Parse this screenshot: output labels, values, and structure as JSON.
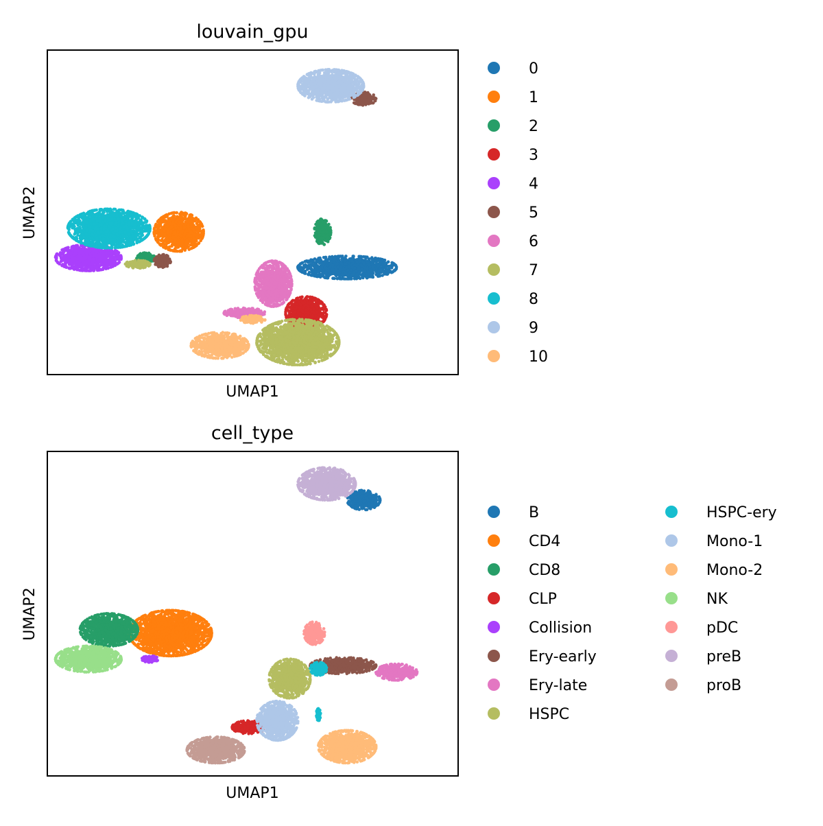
{
  "chart_data": [
    {
      "type": "scatter",
      "title": "louvain_gpu",
      "xlabel": "UMAP1",
      "ylabel": "UMAP2",
      "ticks": "none",
      "legend_position": "right",
      "legend_columns": 1,
      "series": [
        {
          "name": "0",
          "color": "#1f77b4",
          "clusters": [
            {
              "cx": 0.73,
              "cy": 0.33,
              "rx": 0.12,
              "ry": 0.035
            }
          ]
        },
        {
          "name": "1",
          "color": "#ff7f0e",
          "clusters": [
            {
              "cx": 0.32,
              "cy": 0.44,
              "rx": 0.06,
              "ry": 0.06
            }
          ]
        },
        {
          "name": "2",
          "color": "#279e68",
          "clusters": [
            {
              "cx": 0.67,
              "cy": 0.44,
              "rx": 0.02,
              "ry": 0.04
            },
            {
              "cx": 0.24,
              "cy": 0.36,
              "rx": 0.025,
              "ry": 0.015
            }
          ]
        },
        {
          "name": "3",
          "color": "#d62728",
          "clusters": [
            {
              "cx": 0.63,
              "cy": 0.19,
              "rx": 0.05,
              "ry": 0.05
            }
          ]
        },
        {
          "name": "4",
          "color": "#aa40fc",
          "clusters": [
            {
              "cx": 0.1,
              "cy": 0.36,
              "rx": 0.08,
              "ry": 0.04
            }
          ]
        },
        {
          "name": "5",
          "color": "#8c564b",
          "clusters": [
            {
              "cx": 0.77,
              "cy": 0.85,
              "rx": 0.03,
              "ry": 0.02
            },
            {
              "cx": 0.28,
              "cy": 0.35,
              "rx": 0.02,
              "ry": 0.02
            }
          ]
        },
        {
          "name": "6",
          "color": "#e377c2",
          "clusters": [
            {
              "cx": 0.55,
              "cy": 0.28,
              "rx": 0.045,
              "ry": 0.07
            },
            {
              "cx": 0.48,
              "cy": 0.19,
              "rx": 0.05,
              "ry": 0.015
            }
          ]
        },
        {
          "name": "7",
          "color": "#b5bd61",
          "clusters": [
            {
              "cx": 0.61,
              "cy": 0.1,
              "rx": 0.1,
              "ry": 0.07
            },
            {
              "cx": 0.22,
              "cy": 0.34,
              "rx": 0.03,
              "ry": 0.012
            }
          ]
        },
        {
          "name": "8",
          "color": "#17becf",
          "clusters": [
            {
              "cx": 0.15,
              "cy": 0.45,
              "rx": 0.1,
              "ry": 0.06
            }
          ]
        },
        {
          "name": "9",
          "color": "#aec7e8",
          "clusters": [
            {
              "cx": 0.69,
              "cy": 0.89,
              "rx": 0.08,
              "ry": 0.05
            }
          ]
        },
        {
          "name": "10",
          "color": "#ffbb78",
          "clusters": [
            {
              "cx": 0.42,
              "cy": 0.09,
              "rx": 0.07,
              "ry": 0.04
            },
            {
              "cx": 0.5,
              "cy": 0.17,
              "rx": 0.03,
              "ry": 0.012
            }
          ]
        }
      ]
    },
    {
      "type": "scatter",
      "title": "cell_type",
      "xlabel": "UMAP1",
      "ylabel": "UMAP2",
      "ticks": "none",
      "legend_position": "right",
      "legend_columns": 2,
      "series": [
        {
          "name": "B",
          "color": "#1f77b4",
          "clusters": [
            {
              "cx": 0.77,
              "cy": 0.85,
              "rx": 0.04,
              "ry": 0.03
            }
          ]
        },
        {
          "name": "CD4",
          "color": "#ff7f0e",
          "clusters": [
            {
              "cx": 0.3,
              "cy": 0.44,
              "rx": 0.1,
              "ry": 0.07
            }
          ]
        },
        {
          "name": "CD8",
          "color": "#279e68",
          "clusters": [
            {
              "cx": 0.15,
              "cy": 0.45,
              "rx": 0.07,
              "ry": 0.05
            }
          ]
        },
        {
          "name": "CLP",
          "color": "#d62728",
          "clusters": [
            {
              "cx": 0.49,
              "cy": 0.15,
              "rx": 0.04,
              "ry": 0.02
            }
          ]
        },
        {
          "name": "Collision",
          "color": "#aa40fc",
          "clusters": [
            {
              "cx": 0.25,
              "cy": 0.36,
              "rx": 0.02,
              "ry": 0.01
            }
          ]
        },
        {
          "name": "Ery-early",
          "color": "#8c564b",
          "clusters": [
            {
              "cx": 0.72,
              "cy": 0.34,
              "rx": 0.08,
              "ry": 0.025
            }
          ]
        },
        {
          "name": "Ery-late",
          "color": "#e377c2",
          "clusters": [
            {
              "cx": 0.85,
              "cy": 0.32,
              "rx": 0.05,
              "ry": 0.025
            }
          ]
        },
        {
          "name": "HSPC",
          "color": "#b5bd61",
          "clusters": [
            {
              "cx": 0.59,
              "cy": 0.3,
              "rx": 0.05,
              "ry": 0.06
            }
          ]
        },
        {
          "name": "HSPC-ery",
          "color": "#17becf",
          "clusters": [
            {
              "cx": 0.66,
              "cy": 0.33,
              "rx": 0.02,
              "ry": 0.02
            },
            {
              "cx": 0.66,
              "cy": 0.19,
              "rx": 0.005,
              "ry": 0.02
            }
          ]
        },
        {
          "name": "Mono-1",
          "color": "#aec7e8",
          "clusters": [
            {
              "cx": 0.56,
              "cy": 0.17,
              "rx": 0.05,
              "ry": 0.06
            }
          ]
        },
        {
          "name": "Mono-2",
          "color": "#ffbb78",
          "clusters": [
            {
              "cx": 0.73,
              "cy": 0.09,
              "rx": 0.07,
              "ry": 0.05
            }
          ]
        },
        {
          "name": "NK",
          "color": "#98df8a",
          "clusters": [
            {
              "cx": 0.1,
              "cy": 0.36,
              "rx": 0.08,
              "ry": 0.04
            }
          ]
        },
        {
          "name": "pDC",
          "color": "#ff9896",
          "clusters": [
            {
              "cx": 0.65,
              "cy": 0.44,
              "rx": 0.025,
              "ry": 0.035
            }
          ]
        },
        {
          "name": "preB",
          "color": "#c5b0d5",
          "clusters": [
            {
              "cx": 0.68,
              "cy": 0.9,
              "rx": 0.07,
              "ry": 0.05
            }
          ]
        },
        {
          "name": "proB",
          "color": "#c49c94",
          "clusters": [
            {
              "cx": 0.41,
              "cy": 0.08,
              "rx": 0.07,
              "ry": 0.04
            }
          ]
        }
      ]
    }
  ]
}
